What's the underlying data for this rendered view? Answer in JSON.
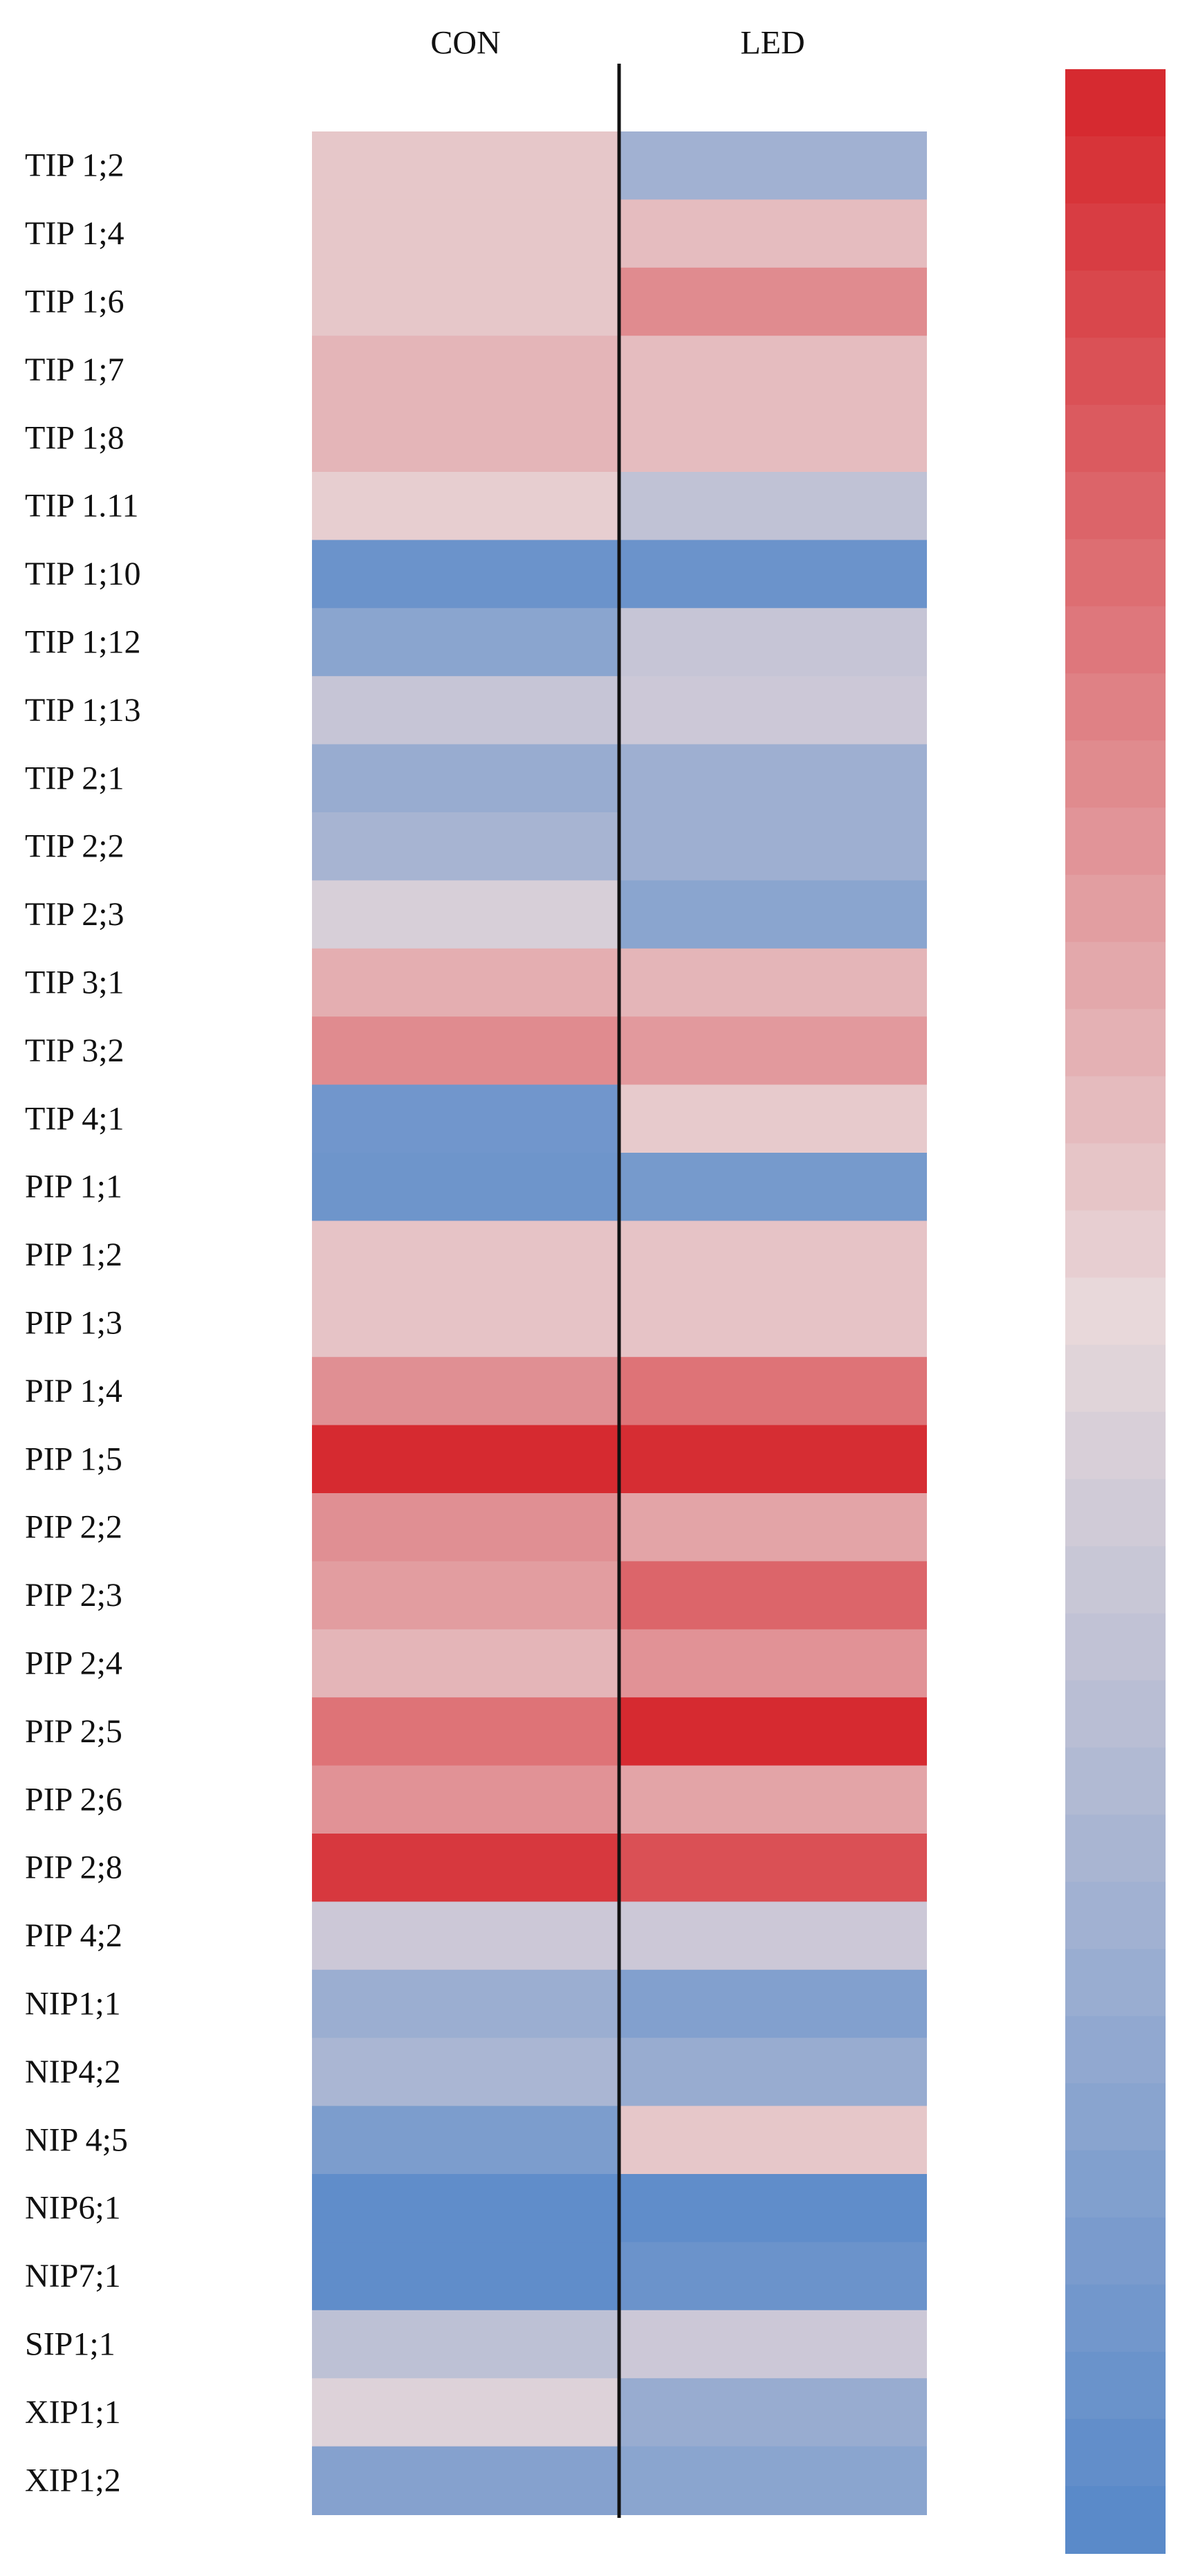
{
  "chart_data": {
    "type": "heatmap",
    "columns": [
      "CON",
      "LED"
    ],
    "rows": [
      "TIP 1;2",
      "TIP 1;4",
      "TIP 1;6",
      "TIP 1;7",
      "TIP 1;8",
      "TIP 1.11",
      "TIP 1;10",
      "TIP 1;12",
      "TIP 1;13",
      "TIP 2;1",
      "TIP 2;2",
      "TIP 2;3",
      "TIP 3;1",
      "TIP 3;2",
      "TIP 4;1",
      "PIP 1;1",
      "PIP 1;2",
      "PIP 1;3",
      "PIP 1;4",
      "PIP 1;5",
      "PIP 2;2",
      "PIP 2;3",
      "PIP 2;4",
      "PIP 2;5",
      "PIP 2;6",
      "PIP 2;8",
      "PIP 4;2",
      "NIP1;1",
      "NIP4;2",
      "NIP 4;5",
      "NIP6;1",
      "NIP7;1",
      "SIP1;1",
      "XIP1;1",
      "XIP1;2"
    ],
    "values": [
      [
        0.55,
        0.25
      ],
      [
        0.55,
        0.58
      ],
      [
        0.55,
        0.72
      ],
      [
        0.6,
        0.58
      ],
      [
        0.6,
        0.58
      ],
      [
        0.53,
        0.36
      ],
      [
        0.06,
        0.06
      ],
      [
        0.17,
        0.38
      ],
      [
        0.38,
        0.4
      ],
      [
        0.22,
        0.24
      ],
      [
        0.27,
        0.24
      ],
      [
        0.44,
        0.17
      ],
      [
        0.62,
        0.6
      ],
      [
        0.72,
        0.68
      ],
      [
        0.08,
        0.54
      ],
      [
        0.07,
        0.1
      ],
      [
        0.56,
        0.56
      ],
      [
        0.56,
        0.56
      ],
      [
        0.71,
        0.79
      ],
      [
        1.0,
        0.99
      ],
      [
        0.71,
        0.65
      ],
      [
        0.67,
        0.83
      ],
      [
        0.6,
        0.7
      ],
      [
        0.79,
        1.0
      ],
      [
        0.7,
        0.65
      ],
      [
        0.96,
        0.89
      ],
      [
        0.4,
        0.4
      ],
      [
        0.23,
        0.14
      ],
      [
        0.28,
        0.22
      ],
      [
        0.12,
        0.55
      ],
      [
        0.02,
        0.02
      ],
      [
        0.02,
        0.06
      ],
      [
        0.35,
        0.4
      ],
      [
        0.46,
        0.22
      ],
      [
        0.15,
        0.17
      ]
    ],
    "color_scale": {
      "low": "#5a8ac9",
      "mid": "#e8d8da",
      "high": "#d62a30"
    },
    "legend": "colorbar-right"
  }
}
